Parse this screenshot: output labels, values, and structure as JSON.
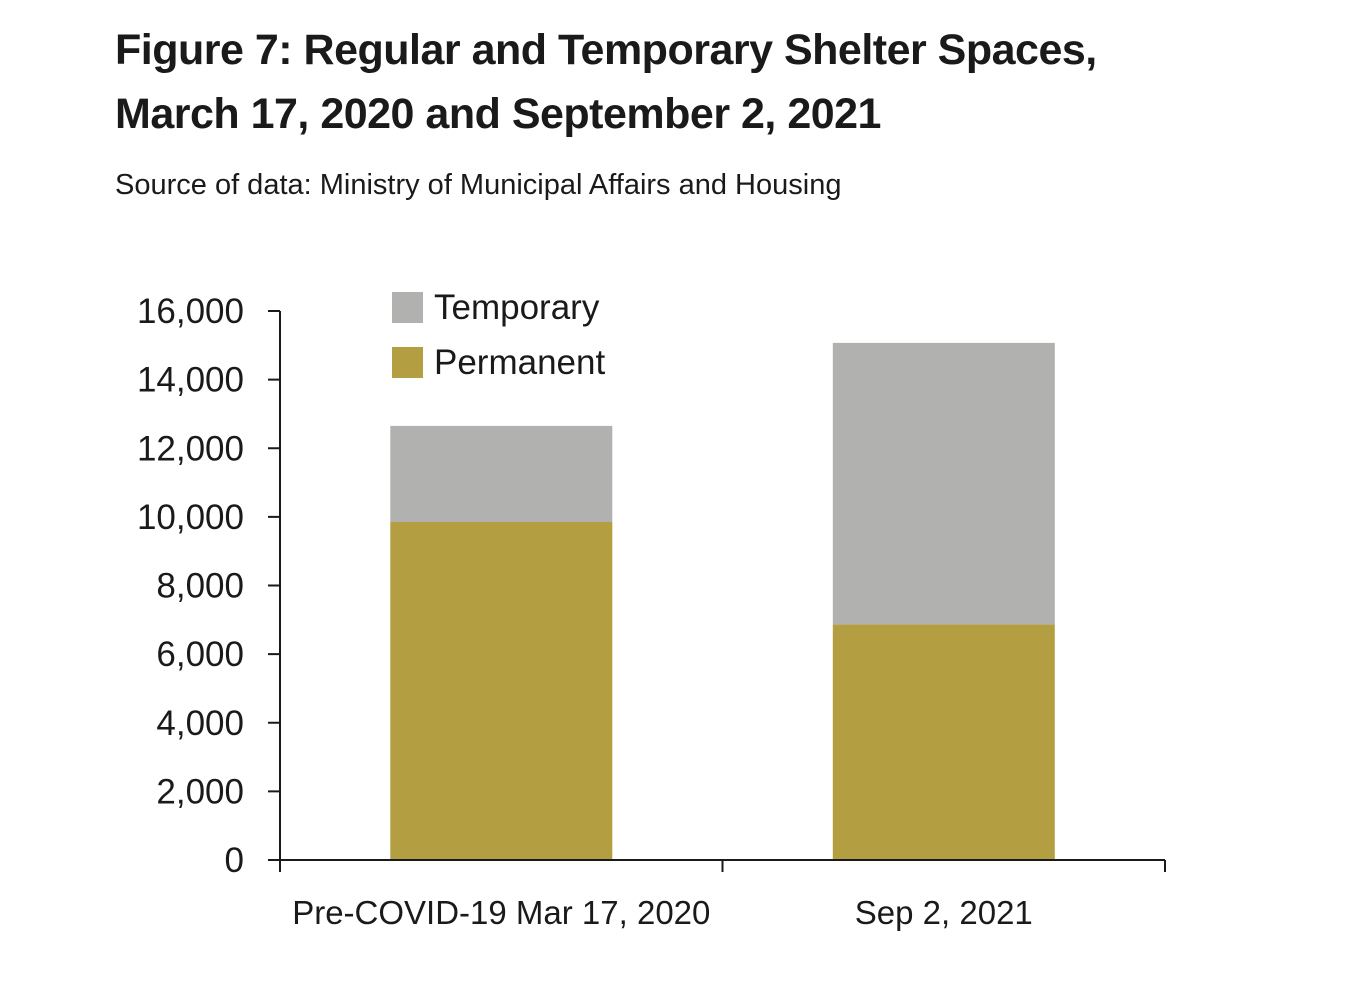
{
  "figure": {
    "title_line1": "Figure 7: Regular and Temporary Shelter Spaces,",
    "title_line2": "March 17, 2020 and September 2, 2021",
    "source": "Source of data: Ministry of Municipal Affairs and Housing"
  },
  "chart_data": {
    "type": "bar",
    "stacked": true,
    "categories": [
      "Pre-COVID-19 Mar 17, 2020",
      "Sep 2, 2021"
    ],
    "series": [
      {
        "name": "Permanent",
        "values": [
          9850,
          6870
        ],
        "color": "#b39f42"
      },
      {
        "name": "Temporary",
        "values": [
          2800,
          8200
        ],
        "color": "#b1b1b0"
      }
    ],
    "ylim": [
      0,
      16000
    ],
    "yticks": [
      0,
      2000,
      4000,
      6000,
      8000,
      10000,
      12000,
      14000,
      16000
    ],
    "ytick_labels": [
      "0",
      "2,000",
      "4,000",
      "6,000",
      "8,000",
      "10,000",
      "12,000",
      "14,000",
      "16,000"
    ],
    "xlabel": "",
    "ylabel": "",
    "grid": false,
    "legend_position": "top-left",
    "legend_order": [
      "Temporary",
      "Permanent"
    ]
  }
}
